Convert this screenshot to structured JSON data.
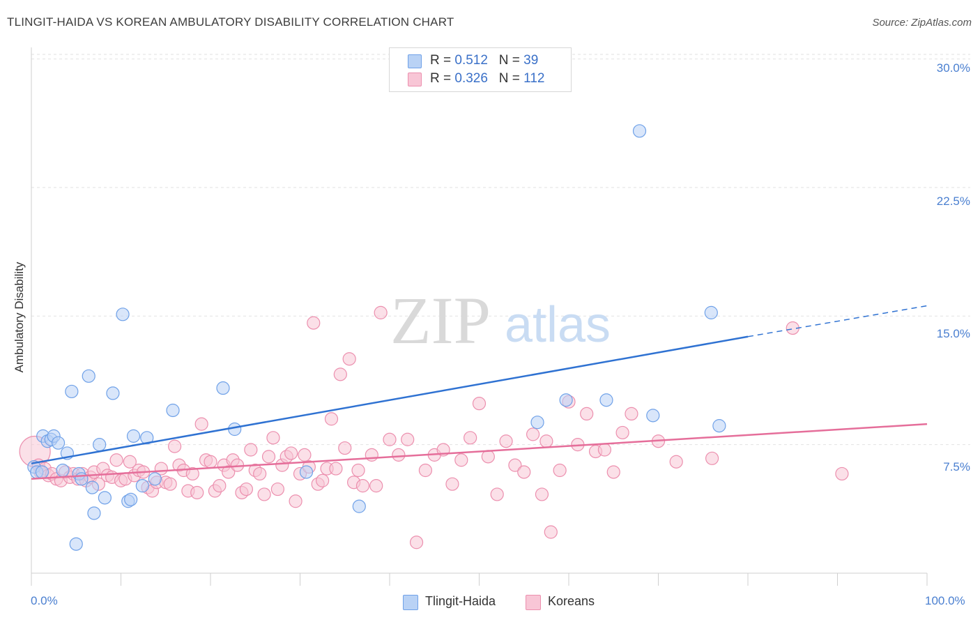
{
  "header": {
    "title": "TLINGIT-HAIDA VS KOREAN AMBULATORY DISABILITY CORRELATION CHART",
    "source": "Source: ZipAtlas.com"
  },
  "watermark": {
    "zip": "ZIP",
    "atlas": "atlas"
  },
  "legend": {
    "rows": [
      {
        "r_label": "R =",
        "r_value": "0.512",
        "n_label": "N =",
        "n_value": "39",
        "color": "#a9c8f3"
      },
      {
        "r_label": "R =",
        "r_value": "0.326",
        "n_label": "N =",
        "n_value": "112",
        "color": "#f6b8cb"
      }
    ]
  },
  "bottom_legend": [
    {
      "label": "Tlingit-Haida",
      "color": "#a9c8f3"
    },
    {
      "label": "Koreans",
      "color": "#f6b8cb"
    }
  ],
  "chart_data": {
    "type": "scatter",
    "title": "TLINGIT-HAIDA VS KOREAN AMBULATORY DISABILITY CORRELATION CHART",
    "xlabel": "",
    "ylabel": "Ambulatory Disability",
    "xlim": [
      0,
      100
    ],
    "ylim": [
      0,
      31
    ],
    "x_tick_labels": [
      "0.0%",
      "100.0%"
    ],
    "y_ticks": [
      7.5,
      15.0,
      22.5,
      30.0
    ],
    "y_tick_labels": [
      "7.5%",
      "15.0%",
      "22.5%",
      "30.0%"
    ],
    "grid": "horizontal dashed",
    "legend_position": "top-center",
    "series": [
      {
        "name": "Tlingit-Haida",
        "color": "#6fa1e8",
        "fill": "#b9d2f5",
        "trend": {
          "x0": 0,
          "y0": 6.4,
          "x1": 80,
          "y1": 13.8,
          "dashed_to_x": 100,
          "dashed_to_y": 15.6,
          "color": "#2f72d2"
        },
        "points": [
          [
            0.3,
            6.2
          ],
          [
            0.6,
            5.9
          ],
          [
            1.2,
            5.9
          ],
          [
            1.3,
            8.0
          ],
          [
            1.8,
            7.7
          ],
          [
            2.2,
            7.8
          ],
          [
            2.5,
            8.0
          ],
          [
            3.0,
            7.6
          ],
          [
            3.5,
            6.0
          ],
          [
            4.0,
            7.0
          ],
          [
            4.5,
            10.6
          ],
          [
            5.0,
            1.7
          ],
          [
            5.3,
            5.8
          ],
          [
            5.6,
            5.5
          ],
          [
            6.4,
            11.5
          ],
          [
            6.8,
            5.0
          ],
          [
            7.0,
            3.5
          ],
          [
            7.6,
            7.5
          ],
          [
            8.2,
            4.4
          ],
          [
            9.1,
            10.5
          ],
          [
            10.2,
            15.1
          ],
          [
            10.8,
            4.2
          ],
          [
            11.1,
            4.3
          ],
          [
            11.4,
            8.0
          ],
          [
            12.4,
            5.1
          ],
          [
            12.9,
            7.9
          ],
          [
            13.8,
            5.5
          ],
          [
            15.8,
            9.5
          ],
          [
            21.4,
            10.8
          ],
          [
            22.7,
            8.4
          ],
          [
            30.7,
            5.9
          ],
          [
            36.6,
            3.9
          ],
          [
            56.5,
            8.8
          ],
          [
            59.7,
            10.1
          ],
          [
            64.2,
            10.1
          ],
          [
            67.9,
            25.8
          ],
          [
            69.4,
            9.2
          ],
          [
            75.9,
            15.2
          ],
          [
            76.8,
            8.6
          ]
        ]
      },
      {
        "name": "Koreans",
        "color": "#ec8fae",
        "fill": "#f8c6d6",
        "trend": {
          "x0": 0,
          "y0": 5.5,
          "x1": 100,
          "y1": 8.7,
          "color": "#e56e9a"
        },
        "points": [
          [
            0.4,
            7.1
          ],
          [
            0.8,
            6.3
          ],
          [
            1.0,
            5.9
          ],
          [
            1.5,
            6.1
          ],
          [
            1.9,
            5.7
          ],
          [
            2.3,
            5.8
          ],
          [
            2.8,
            5.5
          ],
          [
            3.3,
            5.4
          ],
          [
            3.8,
            5.9
          ],
          [
            4.3,
            5.6
          ],
          [
            4.7,
            5.8
          ],
          [
            5.2,
            5.5
          ],
          [
            5.7,
            5.8
          ],
          [
            6.1,
            5.4
          ],
          [
            6.6,
            5.6
          ],
          [
            7.0,
            5.9
          ],
          [
            7.5,
            5.2
          ],
          [
            8.0,
            6.1
          ],
          [
            8.5,
            5.7
          ],
          [
            9.0,
            5.6
          ],
          [
            9.5,
            6.6
          ],
          [
            10.0,
            5.4
          ],
          [
            10.5,
            5.5
          ],
          [
            11.0,
            6.5
          ],
          [
            11.5,
            5.7
          ],
          [
            12.0,
            6.0
          ],
          [
            12.5,
            5.9
          ],
          [
            13.0,
            5.0
          ],
          [
            13.5,
            4.8
          ],
          [
            14.0,
            5.3
          ],
          [
            14.5,
            6.1
          ],
          [
            15.0,
            5.3
          ],
          [
            15.5,
            5.2
          ],
          [
            16.0,
            7.4
          ],
          [
            16.5,
            6.3
          ],
          [
            17.0,
            6.0
          ],
          [
            17.5,
            4.8
          ],
          [
            18.0,
            5.8
          ],
          [
            18.5,
            4.7
          ],
          [
            19.0,
            8.7
          ],
          [
            19.5,
            6.6
          ],
          [
            20.0,
            6.5
          ],
          [
            20.5,
            4.8
          ],
          [
            21.0,
            5.1
          ],
          [
            21.5,
            6.3
          ],
          [
            22.0,
            5.9
          ],
          [
            22.5,
            6.6
          ],
          [
            23.0,
            6.3
          ],
          [
            23.5,
            4.7
          ],
          [
            24.0,
            4.9
          ],
          [
            24.5,
            7.2
          ],
          [
            25.0,
            6.0
          ],
          [
            25.5,
            5.8
          ],
          [
            26.0,
            4.6
          ],
          [
            26.5,
            6.8
          ],
          [
            27.0,
            7.9
          ],
          [
            27.5,
            4.9
          ],
          [
            28.0,
            6.3
          ],
          [
            28.5,
            6.8
          ],
          [
            29.0,
            7.0
          ],
          [
            29.5,
            4.2
          ],
          [
            30.0,
            5.8
          ],
          [
            30.5,
            6.9
          ],
          [
            31.0,
            6.2
          ],
          [
            31.5,
            14.6
          ],
          [
            32.0,
            5.2
          ],
          [
            32.5,
            5.4
          ],
          [
            33.0,
            6.1
          ],
          [
            33.5,
            9.0
          ],
          [
            34.0,
            6.1
          ],
          [
            34.5,
            11.6
          ],
          [
            35.0,
            7.3
          ],
          [
            35.5,
            12.5
          ],
          [
            36.0,
            5.3
          ],
          [
            36.5,
            6.0
          ],
          [
            37.0,
            5.1
          ],
          [
            38.0,
            6.9
          ],
          [
            38.5,
            5.1
          ],
          [
            39.0,
            15.2
          ],
          [
            40.0,
            7.8
          ],
          [
            41.0,
            6.9
          ],
          [
            42.0,
            7.8
          ],
          [
            43.0,
            1.8
          ],
          [
            44.0,
            6.0
          ],
          [
            45.0,
            6.9
          ],
          [
            46.0,
            7.2
          ],
          [
            47.0,
            5.2
          ],
          [
            48.0,
            6.6
          ],
          [
            49.0,
            7.9
          ],
          [
            50.0,
            9.9
          ],
          [
            51.0,
            6.8
          ],
          [
            52.0,
            4.6
          ],
          [
            53.0,
            7.7
          ],
          [
            54.0,
            6.3
          ],
          [
            55.0,
            5.9
          ],
          [
            56.0,
            8.1
          ],
          [
            57.0,
            4.6
          ],
          [
            57.5,
            7.7
          ],
          [
            58.0,
            2.4
          ],
          [
            59.0,
            6.0
          ],
          [
            60.0,
            10.0
          ],
          [
            61.0,
            7.5
          ],
          [
            62.0,
            9.3
          ],
          [
            63.0,
            7.1
          ],
          [
            64.0,
            7.2
          ],
          [
            65.0,
            5.9
          ],
          [
            66.0,
            8.2
          ],
          [
            67.0,
            9.3
          ],
          [
            70.0,
            7.7
          ],
          [
            72.0,
            6.5
          ],
          [
            76.0,
            6.7
          ],
          [
            85.0,
            14.3
          ],
          [
            90.5,
            5.8
          ]
        ]
      }
    ]
  }
}
